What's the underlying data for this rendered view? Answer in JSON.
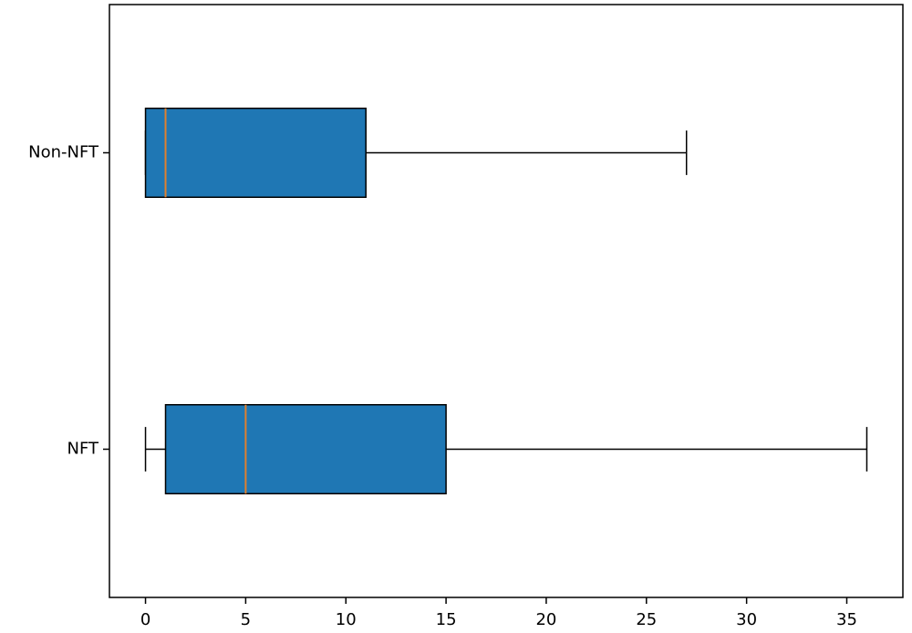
{
  "chart_data": {
    "type": "boxplot",
    "orientation": "horizontal",
    "categories": [
      "NFT",
      "Non-NFT"
    ],
    "boxes": [
      {
        "min": 0,
        "q1": 1,
        "median": 5,
        "q3": 15,
        "max": 36
      },
      {
        "min": 0,
        "q1": 0,
        "median": 1,
        "q3": 11,
        "max": 27
      }
    ],
    "box_color": "#1f77b4",
    "median_color": "#e0802e",
    "xlim": [
      -1.8,
      37.8
    ],
    "xticks": [
      0,
      5,
      10,
      15,
      20,
      25,
      30,
      35
    ]
  }
}
